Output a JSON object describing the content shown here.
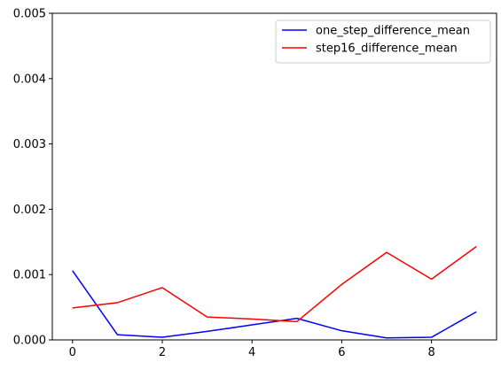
{
  "chart_data": {
    "type": "line",
    "title": "",
    "xlabel": "",
    "ylabel": "",
    "xlim": [
      -0.45,
      9.45
    ],
    "ylim": [
      0,
      0.005
    ],
    "x": [
      0,
      1,
      2,
      3,
      4,
      5,
      6,
      7,
      8,
      9
    ],
    "x_ticks": [
      0,
      2,
      4,
      6,
      8
    ],
    "x_tick_labels": [
      "0",
      "2",
      "4",
      "6",
      "8"
    ],
    "y_ticks": [
      0,
      0.001,
      0.002,
      0.003,
      0.004,
      0.005
    ],
    "y_tick_labels": [
      "0.000",
      "0.001",
      "0.002",
      "0.003",
      "0.004",
      "0.005"
    ],
    "grid": false,
    "legend_position": "top-right",
    "series": [
      {
        "name": "one_step_difference_mean",
        "color": "#0000ff",
        "values": [
          0.00106,
          8e-05,
          4e-05,
          0.00013,
          0.00023,
          0.00033,
          0.00014,
          3e-05,
          4e-05,
          0.00043
        ]
      },
      {
        "name": "step16_difference_mean",
        "color": "#ff0000",
        "values": [
          0.00049,
          0.00057,
          0.0008,
          0.00035,
          0.00032,
          0.00028,
          0.00085,
          0.00134,
          0.00093,
          0.00143
        ]
      }
    ]
  }
}
